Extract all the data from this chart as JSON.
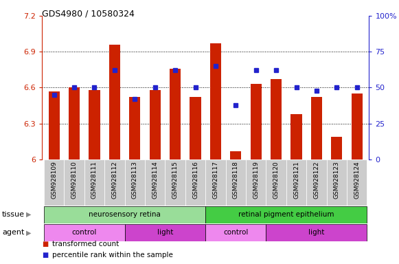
{
  "title": "GDS4980 / 10580324",
  "samples": [
    "GSM928109",
    "GSM928110",
    "GSM928111",
    "GSM928112",
    "GSM928113",
    "GSM928114",
    "GSM928115",
    "GSM928116",
    "GSM928117",
    "GSM928118",
    "GSM928119",
    "GSM928120",
    "GSM928121",
    "GSM928122",
    "GSM928123",
    "GSM928124"
  ],
  "transformed_count": [
    6.57,
    6.6,
    6.58,
    6.96,
    6.52,
    6.58,
    6.76,
    6.52,
    6.97,
    6.07,
    6.63,
    6.67,
    6.38,
    6.52,
    6.19,
    6.55
  ],
  "percentile_rank": [
    45,
    50,
    50,
    62,
    42,
    50,
    62,
    50,
    65,
    38,
    62,
    62,
    50,
    48,
    50,
    50
  ],
  "bar_color": "#cc2200",
  "dot_color": "#2222cc",
  "ylim_left": [
    6.0,
    7.2
  ],
  "ylim_right": [
    0,
    100
  ],
  "yticks_left": [
    6.0,
    6.3,
    6.6,
    6.9,
    7.2
  ],
  "yticks_right": [
    0,
    25,
    50,
    75,
    100
  ],
  "ytick_labels_left": [
    "6",
    "6.3",
    "6.6",
    "6.9",
    "7.2"
  ],
  "ytick_labels_right": [
    "0",
    "25",
    "50",
    "75",
    "100%"
  ],
  "grid_values": [
    6.3,
    6.6,
    6.9
  ],
  "tissue_groups": [
    {
      "label": "neurosensory retina",
      "start": 0,
      "end": 8,
      "color": "#99dd99"
    },
    {
      "label": "retinal pigment epithelium",
      "start": 8,
      "end": 16,
      "color": "#44cc44"
    }
  ],
  "agent_groups": [
    {
      "label": "control",
      "start": 0,
      "end": 4,
      "color": "#ee88ee"
    },
    {
      "label": "light",
      "start": 4,
      "end": 8,
      "color": "#cc44cc"
    },
    {
      "label": "control",
      "start": 8,
      "end": 11,
      "color": "#ee88ee"
    },
    {
      "label": "light",
      "start": 11,
      "end": 16,
      "color": "#cc44cc"
    }
  ],
  "bg_color": "#ffffff",
  "bar_base": 6.0,
  "xlabel_bg": "#cccccc",
  "bar_width": 0.55
}
